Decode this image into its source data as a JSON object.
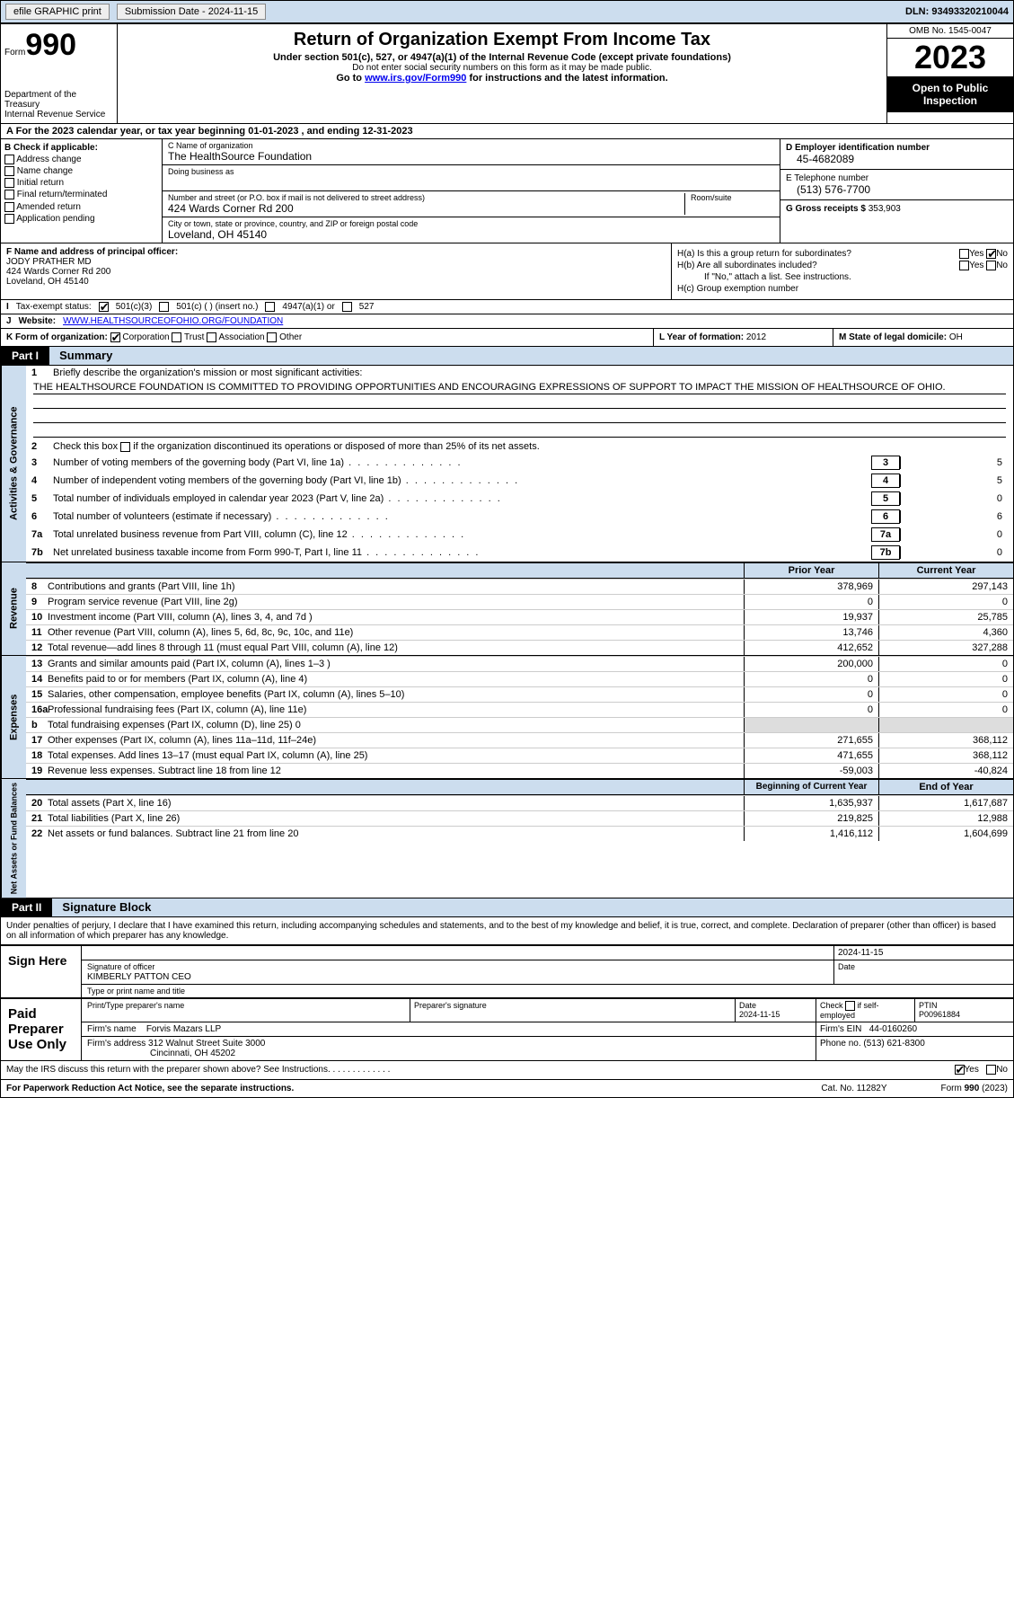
{
  "topbar": {
    "efile": "efile GRAPHIC print",
    "submission": "Submission Date - 2024-11-15",
    "dln": "DLN: 93493320210044"
  },
  "header": {
    "form_label": "Form",
    "form_no": "990",
    "title": "Return of Organization Exempt From Income Tax",
    "sub": "Under section 501(c), 527, or 4947(a)(1) of the Internal Revenue Code (except private foundations)",
    "sub2": "Do not enter social security numbers on this form as it may be made public.",
    "goto": "Go to ",
    "goto_link": "www.irs.gov/Form990",
    "goto_after": " for instructions and the latest information.",
    "omb": "OMB No. 1545-0047",
    "year": "2023",
    "inspect": "Open to Public Inspection",
    "dept": "Department of the Treasury\nInternal Revenue Service"
  },
  "rowA": "For the 2023 calendar year, or tax year beginning 01-01-2023   , and ending 12-31-2023",
  "boxB": {
    "hdr": "B Check if applicable:",
    "opts": [
      "Address change",
      "Name change",
      "Initial return",
      "Final return/terminated",
      "Amended return",
      "Application pending"
    ]
  },
  "boxC": {
    "name_lbl": "C Name of organization",
    "name": "The HealthSource Foundation",
    "dba_lbl": "Doing business as",
    "street_lbl": "Number and street (or P.O. box if mail is not delivered to street address)",
    "room_lbl": "Room/suite",
    "street": "424 Wards Corner Rd 200",
    "city_lbl": "City or town, state or province, country, and ZIP or foreign postal code",
    "city": "Loveland, OH  45140"
  },
  "boxD": {
    "lbl": "D Employer identification number",
    "val": "45-4682089"
  },
  "boxE": {
    "lbl": "E Telephone number",
    "val": "(513) 576-7700"
  },
  "boxG": {
    "lbl": "G Gross receipts $",
    "val": "353,903"
  },
  "boxF": {
    "lbl": "F Name and address of principal officer:",
    "name": "JODY PRATHER MD",
    "addr": "424 Wards Corner Rd 200\nLoveland, OH  45140"
  },
  "boxH": {
    "a": "H(a)  Is this a group return for subordinates?",
    "b": "H(b)  Are all subordinates included?",
    "b_note": "If \"No,\" attach a list. See instructions.",
    "c": "H(c)  Group exemption number"
  },
  "boxI": {
    "lbl": "Tax-exempt status:",
    "o1": "501(c)(3)",
    "o2": "501(c) (  ) (insert no.)",
    "o3": "4947(a)(1) or",
    "o4": "527"
  },
  "boxJ": {
    "lbl": "Website:",
    "val": "WWW.HEALTHSOURCEOFOHIO.ORG/FOUNDATION"
  },
  "boxK": {
    "lbl": "K Form of organization:",
    "opts": [
      "Corporation",
      "Trust",
      "Association",
      "Other"
    ]
  },
  "boxL": {
    "lbl": "L Year of formation:",
    "val": "2012"
  },
  "boxM": {
    "lbl": "M State of legal domicile:",
    "val": "OH"
  },
  "part1": {
    "hdr": "Part I",
    "title": "Summary"
  },
  "gov": {
    "tab": "Activities & Governance",
    "l1": "Briefly describe the organization's mission or most significant activities:",
    "mission": "THE HEALTHSOURCE FOUNDATION IS COMMITTED TO PROVIDING OPPORTUNITIES AND ENCOURAGING EXPRESSIONS OF SUPPORT TO IMPACT THE MISSION OF HEALTHSOURCE OF OHIO.",
    "l2": "Check this box    if the organization discontinued its operations or disposed of more than 25% of its net assets.",
    "rows": [
      {
        "n": "3",
        "t": "Number of voting members of the governing body (Part VI, line 1a)",
        "v": "5"
      },
      {
        "n": "4",
        "t": "Number of independent voting members of the governing body (Part VI, line 1b)",
        "v": "5"
      },
      {
        "n": "5",
        "t": "Total number of individuals employed in calendar year 2023 (Part V, line 2a)",
        "v": "0"
      },
      {
        "n": "6",
        "t": "Total number of volunteers (estimate if necessary)",
        "v": "6"
      },
      {
        "n": "7a",
        "t": "Total unrelated business revenue from Part VIII, column (C), line 12",
        "v": "0"
      },
      {
        "n": "7b",
        "t": "Net unrelated business taxable income from Form 990-T, Part I, line 11",
        "v": "0"
      }
    ]
  },
  "rev": {
    "tab": "Revenue",
    "hdr1": "Prior Year",
    "hdr2": "Current Year",
    "rows": [
      {
        "n": "8",
        "t": "Contributions and grants (Part VIII, line 1h)",
        "p": "378,969",
        "c": "297,143"
      },
      {
        "n": "9",
        "t": "Program service revenue (Part VIII, line 2g)",
        "p": "0",
        "c": "0"
      },
      {
        "n": "10",
        "t": "Investment income (Part VIII, column (A), lines 3, 4, and 7d )",
        "p": "19,937",
        "c": "25,785"
      },
      {
        "n": "11",
        "t": "Other revenue (Part VIII, column (A), lines 5, 6d, 8c, 9c, 10c, and 11e)",
        "p": "13,746",
        "c": "4,360"
      },
      {
        "n": "12",
        "t": "Total revenue—add lines 8 through 11 (must equal Part VIII, column (A), line 12)",
        "p": "412,652",
        "c": "327,288"
      }
    ]
  },
  "exp": {
    "tab": "Expenses",
    "rows": [
      {
        "n": "13",
        "t": "Grants and similar amounts paid (Part IX, column (A), lines 1–3 )",
        "p": "200,000",
        "c": "0"
      },
      {
        "n": "14",
        "t": "Benefits paid to or for members (Part IX, column (A), line 4)",
        "p": "0",
        "c": "0"
      },
      {
        "n": "15",
        "t": "Salaries, other compensation, employee benefits (Part IX, column (A), lines 5–10)",
        "p": "0",
        "c": "0"
      },
      {
        "n": "16a",
        "t": "Professional fundraising fees (Part IX, column (A), line 11e)",
        "p": "0",
        "c": "0"
      },
      {
        "n": "b",
        "t": "Total fundraising expenses (Part IX, column (D), line 25) 0",
        "p": "",
        "c": "",
        "grey": true
      },
      {
        "n": "17",
        "t": "Other expenses (Part IX, column (A), lines 11a–11d, 11f–24e)",
        "p": "271,655",
        "c": "368,112"
      },
      {
        "n": "18",
        "t": "Total expenses. Add lines 13–17 (must equal Part IX, column (A), line 25)",
        "p": "471,655",
        "c": "368,112"
      },
      {
        "n": "19",
        "t": "Revenue less expenses. Subtract line 18 from line 12",
        "p": "-59,003",
        "c": "-40,824"
      }
    ]
  },
  "net": {
    "tab": "Net Assets or Fund Balances",
    "hdr1": "Beginning of Current Year",
    "hdr2": "End of Year",
    "rows": [
      {
        "n": "20",
        "t": "Total assets (Part X, line 16)",
        "p": "1,635,937",
        "c": "1,617,687"
      },
      {
        "n": "21",
        "t": "Total liabilities (Part X, line 26)",
        "p": "219,825",
        "c": "12,988"
      },
      {
        "n": "22",
        "t": "Net assets or fund balances. Subtract line 21 from line 20",
        "p": "1,416,112",
        "c": "1,604,699"
      }
    ]
  },
  "part2": {
    "hdr": "Part II",
    "title": "Signature Block"
  },
  "perjury": "Under penalties of perjury, I declare that I have examined this return, including accompanying schedules and statements, and to the best of my knowledge and belief, it is true, correct, and complete. Declaration of preparer (other than officer) is based on all information of which preparer has any knowledge.",
  "sign": {
    "here": "Sign Here",
    "sig_lbl": "Signature of officer",
    "date_lbl": "Date",
    "date": "2024-11-15",
    "name": "KIMBERLY PATTON CEO",
    "name_lbl": "Type or print name and title"
  },
  "paid": {
    "lbl": "Paid Preparer Use Only",
    "c1": "Print/Type preparer's name",
    "c2": "Preparer's signature",
    "c3": "Date",
    "date": "2024-11-15",
    "c4": "Check      if self-employed",
    "c5_lbl": "PTIN",
    "c5": "P00961884",
    "firm_lbl": "Firm's name",
    "firm": "Forvis Mazars LLP",
    "ein_lbl": "Firm's EIN",
    "ein": "44-0160260",
    "addr_lbl": "Firm's address",
    "addr": "312 Walnut Street Suite 3000\nCincinnati, OH  45202",
    "phone_lbl": "Phone no.",
    "phone": "(513) 621-8300"
  },
  "discuss": "May the IRS discuss this return with the preparer shown above? See Instructions.",
  "footer": {
    "l": "For Paperwork Reduction Act Notice, see the separate instructions.",
    "m": "Cat. No. 11282Y",
    "r": "Form 990 (2023)"
  }
}
